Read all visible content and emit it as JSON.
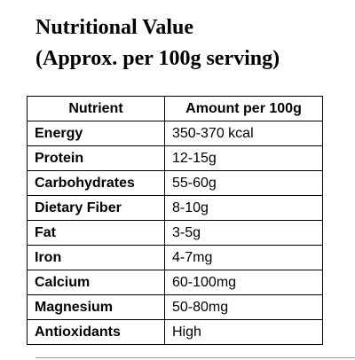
{
  "title": {
    "line1": "Nutritional Value",
    "line2": "(Approx. per 100g serving)"
  },
  "table": {
    "header": [
      "Nutrient",
      "Amount per 100g"
    ],
    "rows": [
      [
        "Energy",
        "350-370 kcal"
      ],
      [
        "Protein",
        "12-15g"
      ],
      [
        "Carbohydrates",
        "55-60g"
      ],
      [
        "Dietary Fiber",
        "8-10g"
      ],
      [
        "Fat",
        "3-5g"
      ],
      [
        "Iron",
        "4-7mg"
      ],
      [
        "Calcium",
        "60-100mg"
      ],
      [
        "Magnesium",
        "50-80mg"
      ],
      [
        "Antioxidants",
        "High"
      ]
    ]
  }
}
